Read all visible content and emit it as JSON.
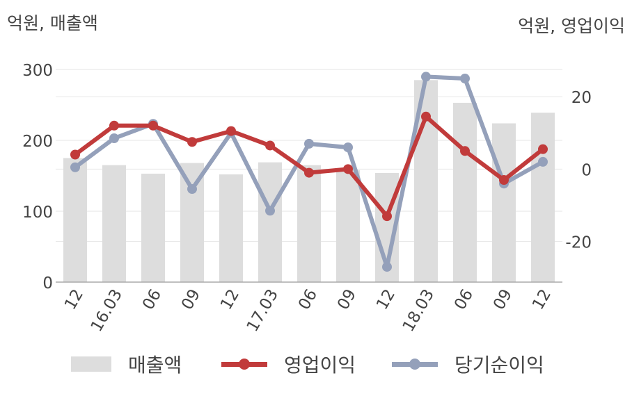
{
  "units": {
    "left": "억원, 매출액",
    "right": "억원, 영업이익"
  },
  "legend": {
    "revenue": "매출액",
    "operating": "영업이익",
    "net": "당기순이익"
  },
  "colors": {
    "bar": "#dddddd",
    "operating": "#c13b3b",
    "net": "#94a0ba",
    "grid": "#e6e6e6",
    "axis": "#aaaaaa"
  },
  "chart_data": {
    "type": "bar+line",
    "categories": [
      "12",
      "16.03",
      "06",
      "09",
      "12",
      "17.03",
      "06",
      "09",
      "12",
      "18.03",
      "06",
      "09",
      "12"
    ],
    "left_axis": {
      "ylim": [
        0,
        300
      ],
      "ticks": [
        "0",
        "100",
        "200",
        "300"
      ]
    },
    "right_axis": {
      "ylim": [
        -31.2,
        27.5
      ],
      "ticks": [
        "-20",
        "0",
        "20"
      ]
    },
    "series": [
      {
        "name": "매출액",
        "type": "bar",
        "axis": "left",
        "values": [
          175,
          165,
          153,
          168,
          152,
          169,
          165,
          158,
          154,
          285,
          253,
          224,
          239
        ]
      },
      {
        "name": "영업이익",
        "type": "line",
        "axis": "right",
        "values": [
          4,
          12,
          12,
          7.5,
          10.5,
          6.5,
          -1,
          0,
          -13,
          14.5,
          5,
          -3,
          5.5
        ]
      },
      {
        "name": "당기순이익",
        "type": "line",
        "axis": "right",
        "values": [
          0.5,
          8.5,
          12.5,
          -5.5,
          10,
          -11.5,
          7,
          6,
          -27,
          25.5,
          25,
          -4,
          2
        ]
      }
    ]
  }
}
